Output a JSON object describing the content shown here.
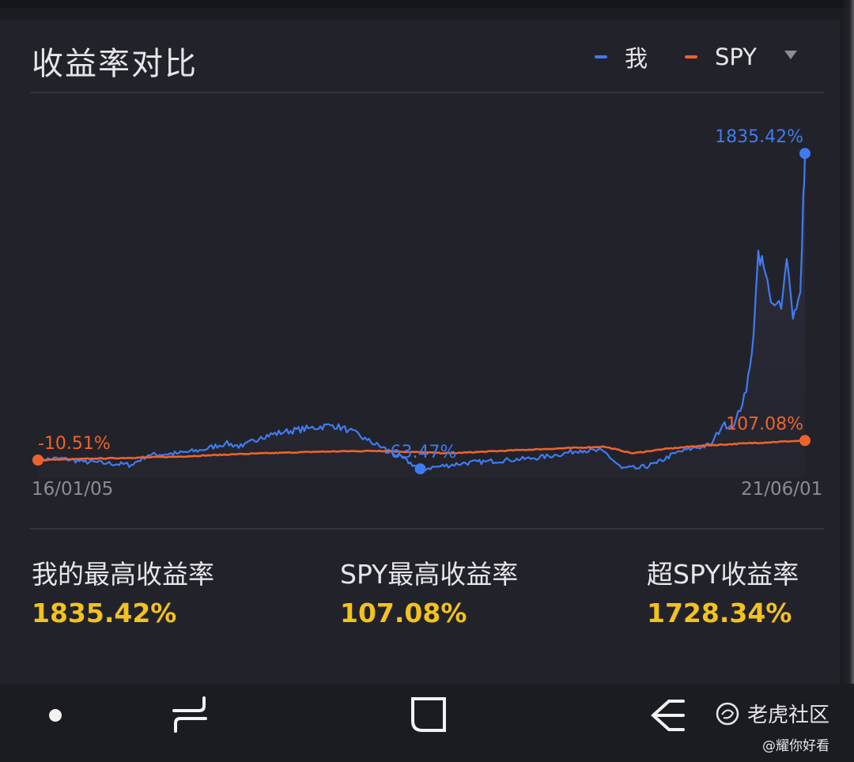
{
  "header": {
    "title": "收益率对比",
    "legend": [
      {
        "name": "我",
        "color": "#3f7bf0"
      },
      {
        "name": "SPY",
        "color": "#f0622c"
      }
    ],
    "dropdown_icon": "triangle-down"
  },
  "chart_data": {
    "type": "line",
    "x_range": [
      "2016-01-05",
      "2021-06-01"
    ],
    "x_tick_labels": [
      "16/01/05",
      "21/06/01"
    ],
    "y_range": [
      -120,
      2150
    ],
    "grid": false,
    "series": [
      {
        "name": "我",
        "color": "#3f7bf0",
        "points": [
          [
            "2016-01-05",
            -10
          ],
          [
            "2016-03-01",
            0
          ],
          [
            "2016-05-01",
            -20
          ],
          [
            "2016-07-01",
            -30
          ],
          [
            "2016-09-01",
            -40
          ],
          [
            "2016-10-15",
            20
          ],
          [
            "2017-01-01",
            30
          ],
          [
            "2017-03-01",
            50
          ],
          [
            "2017-05-01",
            90
          ],
          [
            "2017-06-15",
            70
          ],
          [
            "2017-08-01",
            130
          ],
          [
            "2017-10-01",
            160
          ],
          [
            "2017-12-01",
            180
          ],
          [
            "2018-02-01",
            200
          ],
          [
            "2018-03-15",
            170
          ],
          [
            "2018-05-01",
            110
          ],
          [
            "2018-07-01",
            40
          ],
          [
            "2018-09-15",
            -63.47
          ],
          [
            "2018-11-01",
            -50
          ],
          [
            "2019-01-01",
            -30
          ],
          [
            "2019-03-01",
            -20
          ],
          [
            "2019-05-01",
            -10
          ],
          [
            "2019-07-01",
            0
          ],
          [
            "2019-09-01",
            20
          ],
          [
            "2019-11-01",
            50
          ],
          [
            "2020-01-01",
            40
          ],
          [
            "2020-02-15",
            -60
          ],
          [
            "2020-04-01",
            -60
          ],
          [
            "2020-05-15",
            -30
          ],
          [
            "2020-07-01",
            30
          ],
          [
            "2020-08-15",
            60
          ],
          [
            "2020-10-01",
            80
          ],
          [
            "2020-11-01",
            200
          ],
          [
            "2020-12-01",
            200
          ],
          [
            "2021-01-01",
            400
          ],
          [
            "2021-01-20",
            750
          ],
          [
            "2021-02-01",
            1250
          ],
          [
            "2021-02-15",
            1150
          ],
          [
            "2021-03-01",
            1000
          ],
          [
            "2021-03-15",
            920
          ],
          [
            "2021-04-01",
            900
          ],
          [
            "2021-04-15",
            1200
          ],
          [
            "2021-05-01",
            840
          ],
          [
            "2021-05-10",
            900
          ],
          [
            "2021-05-20",
            1000
          ],
          [
            "2021-05-28",
            1600
          ],
          [
            "2021-06-01",
            1835.42
          ]
        ]
      },
      {
        "name": "SPY",
        "color": "#f0622c",
        "points": [
          [
            "2016-01-05",
            -10.51
          ],
          [
            "2016-06-01",
            -2
          ],
          [
            "2017-01-01",
            10
          ],
          [
            "2017-06-01",
            25
          ],
          [
            "2018-01-01",
            40
          ],
          [
            "2018-06-01",
            45
          ],
          [
            "2018-12-01",
            30
          ],
          [
            "2019-06-01",
            50
          ],
          [
            "2020-01-01",
            70
          ],
          [
            "2020-03-15",
            30
          ],
          [
            "2020-06-01",
            55
          ],
          [
            "2020-09-01",
            75
          ],
          [
            "2021-01-01",
            90
          ],
          [
            "2021-06-01",
            107.08
          ]
        ]
      }
    ],
    "annotations": [
      {
        "series": "我",
        "label": "1835.42%",
        "x": "2021-06-01",
        "y": 1835.42
      },
      {
        "series": "我",
        "label": "-63.47%",
        "x": "2018-09-15",
        "y": -63.47
      },
      {
        "series": "SPY",
        "label": "107.08%",
        "x": "2021-06-01",
        "y": 107.08
      },
      {
        "series": "SPY",
        "label": "-10.51%",
        "x": "2016-01-05",
        "y": -10.51
      }
    ]
  },
  "stats": [
    {
      "label": "我的最高收益率",
      "value": "1835.42%"
    },
    {
      "label": "SPY最高收益率",
      "value": "107.08%"
    },
    {
      "label": "超SPY收益率",
      "value": "1728.34%"
    }
  ],
  "navbar": {
    "items": [
      "dot-icon",
      "recent-apps-icon",
      "home-icon",
      "back-icon"
    ]
  },
  "watermark": {
    "brand": "老虎社区",
    "user": "@耀你好看"
  }
}
